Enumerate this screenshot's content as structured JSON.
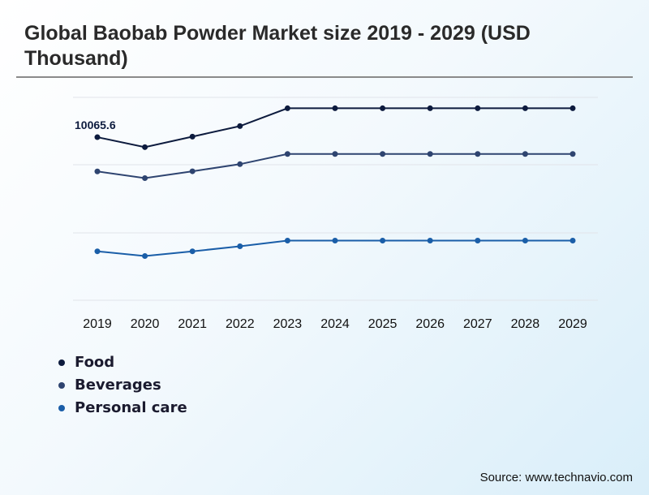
{
  "header": {
    "title": "Global Baobab Powder Market size 2019 - 2029 (USD Thousand)"
  },
  "footer": {
    "source": "Source: www.technavio.com"
  },
  "chart_data": {
    "type": "line",
    "title": "Global Baobab Powder Market size 2019 - 2029 (USD Thousand)",
    "x": [
      "2019",
      "2020",
      "2021",
      "2022",
      "2023",
      "2024",
      "2025",
      "2026",
      "2027",
      "2028",
      "2029"
    ],
    "xlabel": "",
    "ylabel": "",
    "ylim": [
      0,
      14000
    ],
    "grid": true,
    "legend": "bottom-left",
    "annotations": [
      {
        "series": "Food",
        "x": "2019",
        "label": "10065.6"
      }
    ],
    "series": [
      {
        "name": "Food",
        "color": "#0d1b3e",
        "values": [
          10065.6,
          9450,
          10100,
          10750,
          11850,
          11850,
          11850,
          11850,
          11850,
          11850,
          11850
        ]
      },
      {
        "name": "Beverages",
        "color": "#2e4470",
        "values": [
          7950,
          7540,
          7960,
          8400,
          9030,
          9030,
          9030,
          9030,
          9030,
          9030,
          9030
        ]
      },
      {
        "name": "Personal care",
        "color": "#1a5ea8",
        "values": [
          3020,
          2730,
          3020,
          3330,
          3680,
          3680,
          3680,
          3680,
          3680,
          3680,
          3680
        ]
      }
    ]
  }
}
